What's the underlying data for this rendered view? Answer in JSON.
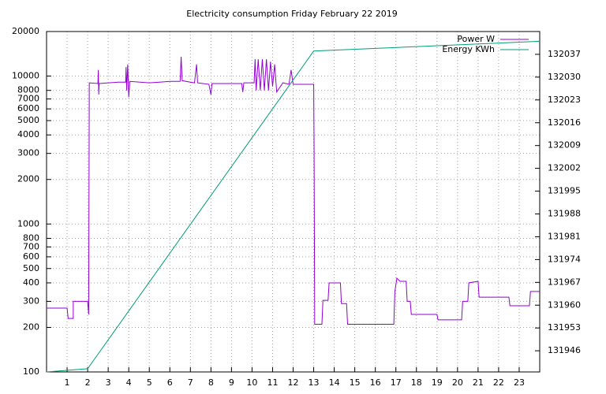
{
  "chart_data": {
    "type": "line",
    "title": "Electricity consumption Friday February 22 2019",
    "xlim": [
      0,
      24
    ],
    "xticks": [
      1,
      2,
      3,
      4,
      5,
      6,
      7,
      8,
      9,
      10,
      11,
      12,
      13,
      14,
      15,
      16,
      17,
      18,
      19,
      20,
      21,
      22,
      23
    ],
    "ylim": [
      100,
      20000
    ],
    "yscale": "log",
    "yticks": [
      100,
      200,
      300,
      400,
      500,
      600,
      700,
      800,
      1000,
      2000,
      3000,
      4000,
      5000,
      6000,
      7000,
      8000,
      10000,
      20000
    ],
    "y2lim": [
      131939.5,
      132044
    ],
    "y2ticks": [
      131946,
      131953,
      131960,
      131967,
      131974,
      131981,
      131988,
      131995,
      132002,
      132009,
      132016,
      132023,
      132030,
      132037
    ],
    "grid": true,
    "legend": "top-right",
    "series": [
      {
        "name": "Power W",
        "color": "#9400d3",
        "x": [
          0,
          1.0,
          1.05,
          1.3,
          1.3,
          2.0,
          2.05,
          2.08,
          2.5,
          2.52,
          2.54,
          2.56,
          3.5,
          3.85,
          3.87,
          3.9,
          3.95,
          4.0,
          4.05,
          5.0,
          5.5,
          6.0,
          6.5,
          6.55,
          6.6,
          7.0,
          7.2,
          7.3,
          7.35,
          7.9,
          8.0,
          8.05,
          9.5,
          9.55,
          9.6,
          10.1,
          10.15,
          10.2,
          10.3,
          10.4,
          10.5,
          10.6,
          10.7,
          10.8,
          10.9,
          11.0,
          11.1,
          11.2,
          11.5,
          11.8,
          11.9,
          12.0,
          13.0,
          13.02,
          13.05,
          13.4,
          13.45,
          13.7,
          13.75,
          14.3,
          14.35,
          14.6,
          14.65,
          16.9,
          16.95,
          17.05,
          17.2,
          17.5,
          17.55,
          17.7,
          17.75,
          19.0,
          19.05,
          20.2,
          20.25,
          20.5,
          20.55,
          21.0,
          21.05,
          22.5,
          22.55,
          23.5,
          23.55,
          24
        ],
        "values": [
          270,
          270,
          230,
          230,
          300,
          300,
          245,
          9000,
          8900,
          11000,
          7500,
          8900,
          9100,
          9100,
          11500,
          8000,
          12000,
          7200,
          9200,
          9000,
          9100,
          9200,
          9200,
          13500,
          9300,
          9100,
          9000,
          12000,
          9000,
          8800,
          7500,
          8900,
          8900,
          7800,
          9000,
          9000,
          13000,
          8000,
          13000,
          8000,
          13000,
          8000,
          13000,
          8000,
          12500,
          8500,
          12000,
          7800,
          9000,
          8800,
          11000,
          8800,
          8800,
          3200,
          210,
          210,
          305,
          305,
          400,
          400,
          290,
          290,
          210,
          210,
          350,
          430,
          410,
          410,
          300,
          300,
          245,
          245,
          225,
          225,
          300,
          300,
          400,
          410,
          320,
          320,
          280,
          280,
          350,
          350
        ]
      },
      {
        "name": "Energy KWh",
        "color": "#009e73",
        "axis": "y2",
        "x": [
          0,
          2,
          13,
          24
        ],
        "values": [
          131939.5,
          131940.5,
          132038,
          132041
        ]
      }
    ]
  }
}
